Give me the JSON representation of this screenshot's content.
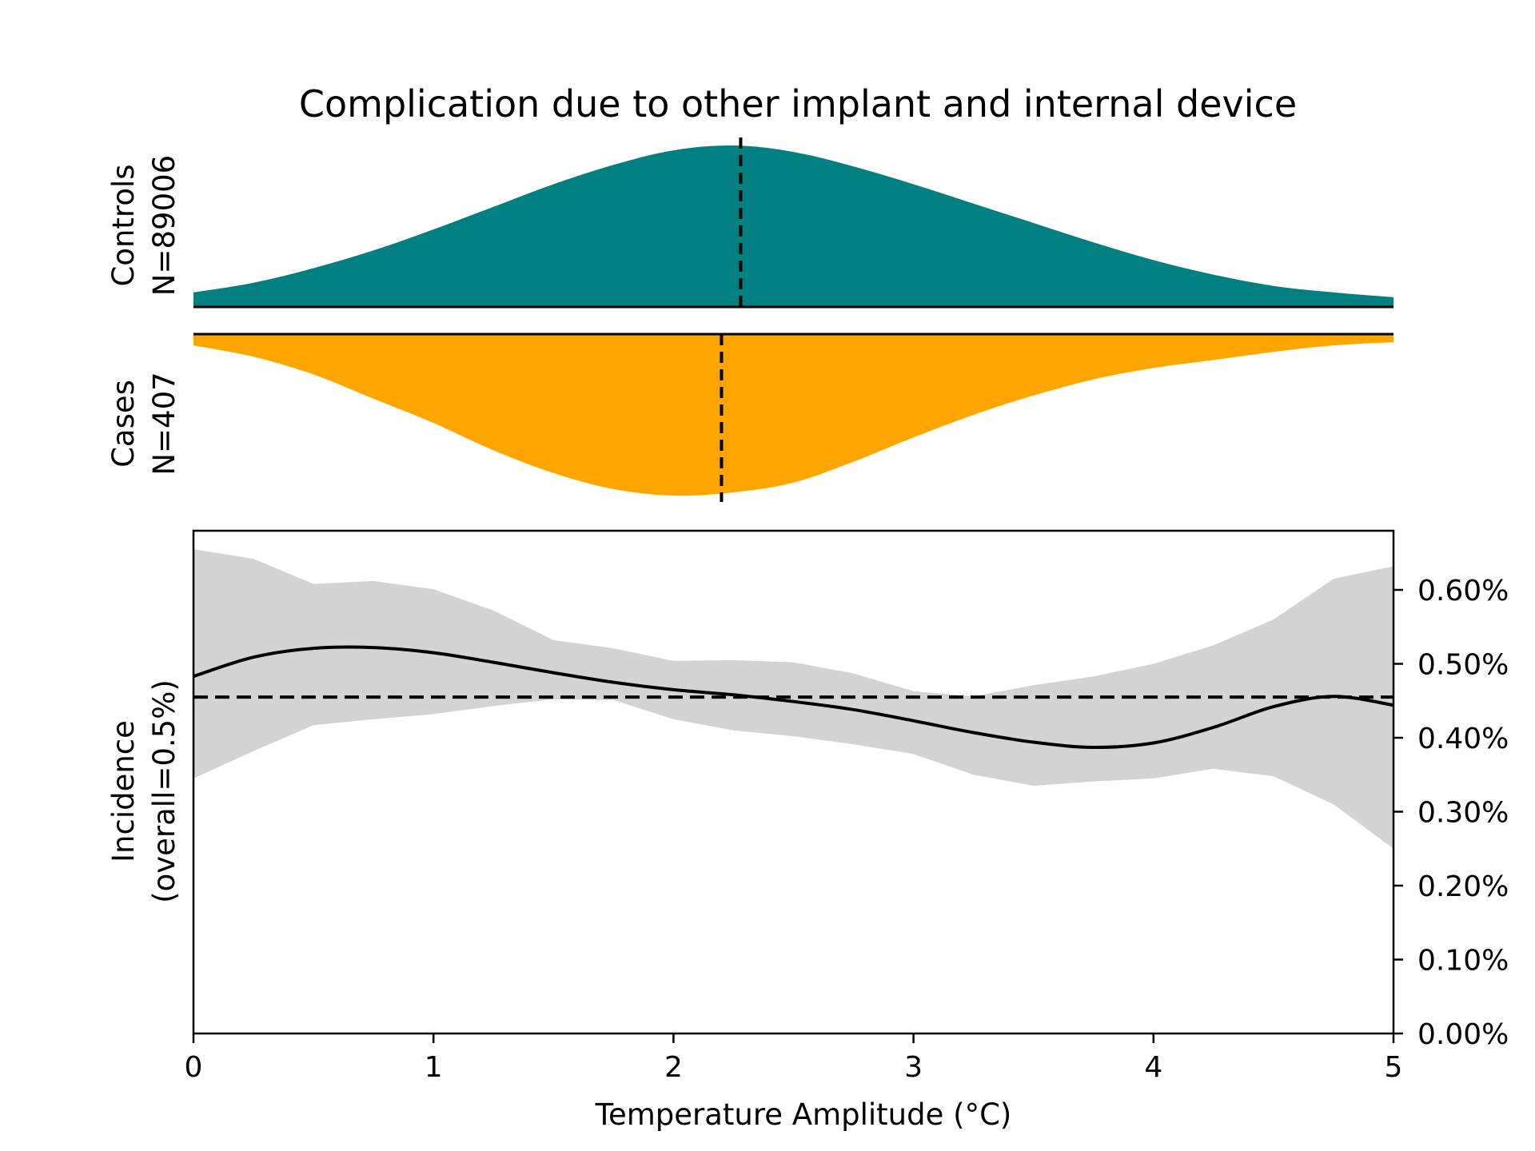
{
  "chart_data": {
    "type": "area",
    "title": "Complication due to other implant and internal device",
    "xlabel": "Temperature Amplitude (°C)",
    "xlim": [
      0,
      5
    ],
    "x_ticks": [
      "0",
      "1",
      "2",
      "3",
      "4",
      "5"
    ],
    "colors": {
      "controls": "#008080",
      "cases": "#FFA500",
      "band": "#d3d3d3",
      "line": "#000000"
    },
    "controls": {
      "label_line1": "Controls",
      "label_line2": "N=89006",
      "median": 2.28,
      "x": [
        0,
        0.25,
        0.5,
        0.75,
        1.0,
        1.25,
        1.5,
        1.75,
        2.0,
        2.25,
        2.5,
        2.75,
        3.0,
        3.25,
        3.5,
        3.75,
        4.0,
        4.25,
        4.5,
        4.75,
        5.0
      ],
      "density": [
        0.09,
        0.15,
        0.24,
        0.35,
        0.48,
        0.62,
        0.76,
        0.88,
        0.97,
        1.0,
        0.96,
        0.87,
        0.76,
        0.64,
        0.52,
        0.4,
        0.29,
        0.2,
        0.13,
        0.09,
        0.06
      ]
    },
    "cases": {
      "label_line1": "Cases",
      "label_line2": "N=407",
      "median": 2.2,
      "x": [
        0,
        0.25,
        0.5,
        0.75,
        1.0,
        1.25,
        1.5,
        1.75,
        2.0,
        2.25,
        2.5,
        2.75,
        3.0,
        3.25,
        3.5,
        3.75,
        4.0,
        4.25,
        4.5,
        4.75,
        5.0
      ],
      "density": [
        0.07,
        0.14,
        0.25,
        0.4,
        0.55,
        0.72,
        0.86,
        0.96,
        1.0,
        0.98,
        0.92,
        0.79,
        0.64,
        0.5,
        0.38,
        0.28,
        0.21,
        0.16,
        0.11,
        0.07,
        0.05
      ]
    },
    "incidence": {
      "ylabel_line1": "Incidence",
      "ylabel_line2": "(overall=0.5%)",
      "ylim": [
        0,
        0.0068
      ],
      "y_ticks": [
        0,
        0.001,
        0.002,
        0.003,
        0.004,
        0.005,
        0.006
      ],
      "y_tick_labels": [
        "0.00%",
        "0.10%",
        "0.20%",
        "0.30%",
        "0.40%",
        "0.50%",
        "0.60%"
      ],
      "overall": 0.00455,
      "x": [
        0,
        0.25,
        0.5,
        0.75,
        1.0,
        1.25,
        1.5,
        1.75,
        2.0,
        2.25,
        2.5,
        2.75,
        3.0,
        3.25,
        3.5,
        3.75,
        4.0,
        4.25,
        4.5,
        4.75,
        5.0
      ],
      "y": [
        0.00483,
        0.00509,
        0.00521,
        0.00522,
        0.00515,
        0.00502,
        0.00488,
        0.00475,
        0.00465,
        0.00458,
        0.00449,
        0.00438,
        0.00423,
        0.00407,
        0.00394,
        0.00387,
        0.00393,
        0.00414,
        0.00442,
        0.00456,
        0.00444
      ],
      "ci_upper": [
        0.00655,
        0.00642,
        0.00608,
        0.00612,
        0.00601,
        0.00572,
        0.00532,
        0.00521,
        0.00504,
        0.00505,
        0.00502,
        0.00487,
        0.00463,
        0.00456,
        0.00471,
        0.00483,
        0.005,
        0.00525,
        0.0056,
        0.00615,
        0.00632
      ],
      "ci_lower": [
        0.00345,
        0.00382,
        0.00417,
        0.00425,
        0.00432,
        0.00443,
        0.00452,
        0.00451,
        0.00425,
        0.0041,
        0.00402,
        0.00391,
        0.00378,
        0.0035,
        0.00335,
        0.00341,
        0.00345,
        0.00358,
        0.00348,
        0.0031,
        0.0025
      ]
    }
  }
}
